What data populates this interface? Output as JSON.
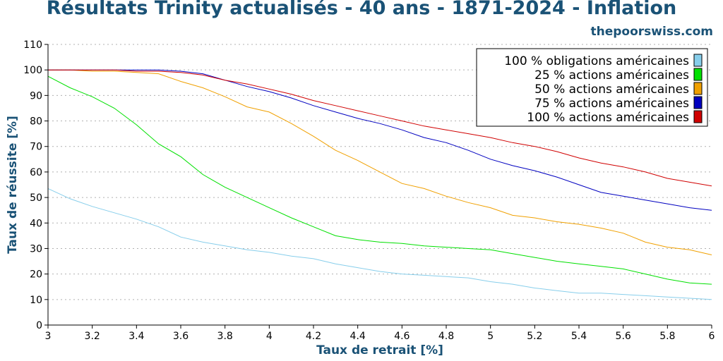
{
  "header": {
    "title": "Résultats Trinity actualisés - 40 ans - 1871-2024 - Inflation",
    "site": "thepoorswiss.com"
  },
  "chart_data": {
    "type": "line",
    "title": "Résultats Trinity actualisés - 40 ans - 1871-2024 - Inflation",
    "xlabel": "Taux de retrait [%]",
    "ylabel": "Taux de réussite [%]",
    "xlim": [
      3,
      6
    ],
    "ylim": [
      0,
      110
    ],
    "xticks": [
      "3",
      "3.2",
      "3.4",
      "3.6",
      "3.8",
      "4",
      "4.2",
      "4.4",
      "4.6",
      "4.8",
      "5",
      "5.2",
      "5.4",
      "5.6",
      "5.8",
      "6"
    ],
    "yticks": [
      "0",
      "10",
      "20",
      "30",
      "40",
      "50",
      "60",
      "70",
      "80",
      "90",
      "100",
      "110"
    ],
    "grid": "horizontal dotted",
    "legend_position": "top-right",
    "x": [
      3.0,
      3.1,
      3.2,
      3.3,
      3.4,
      3.5,
      3.6,
      3.7,
      3.8,
      3.9,
      4.0,
      4.1,
      4.2,
      4.3,
      4.4,
      4.5,
      4.6,
      4.7,
      4.8,
      4.9,
      5.0,
      5.1,
      5.2,
      5.3,
      5.4,
      5.5,
      5.6,
      5.7,
      5.8,
      5.9,
      6.0
    ],
    "series": [
      {
        "name": "100 % obligations américaines",
        "color": "#87ceeb",
        "values": [
          53.5,
          49.5,
          46.5,
          44,
          41.5,
          38.5,
          34.5,
          32.5,
          31,
          29.5,
          28.5,
          27,
          26,
          24,
          22.5,
          21,
          20,
          19.5,
          19,
          18.5,
          17,
          16,
          14.5,
          13.5,
          12.5,
          12.5,
          12,
          11.5,
          11,
          10.5,
          10
        ]
      },
      {
        "name": "25 % actions américaines",
        "color": "#00e000",
        "values": [
          97.5,
          93,
          89.5,
          85,
          78.5,
          71,
          66,
          59,
          54,
          50,
          46,
          42,
          38.5,
          35,
          33.5,
          32.5,
          32,
          31,
          30.5,
          30,
          29.5,
          28,
          26.5,
          25,
          24,
          23,
          22,
          20,
          18,
          16.5,
          16
        ]
      },
      {
        "name": "50 % actions américaines",
        "color": "#f0a000",
        "values": [
          100,
          100,
          99.5,
          99.5,
          99,
          98.5,
          95.5,
          93,
          89.5,
          85.5,
          83.5,
          79,
          74,
          68.5,
          64.5,
          60,
          55.5,
          53.5,
          50.5,
          48,
          46,
          43,
          42,
          40.5,
          39.5,
          38,
          36,
          32.5,
          30.5,
          29.5,
          27.5
        ]
      },
      {
        "name": "75 % actions américaines",
        "color": "#0000c0",
        "values": [
          100,
          100,
          100,
          100,
          100,
          100,
          99.5,
          98.5,
          96,
          93.5,
          91.5,
          89,
          86,
          83.5,
          81,
          79,
          76.5,
          73.5,
          71.5,
          68.5,
          65,
          62.5,
          60.5,
          58,
          55,
          52,
          50.5,
          49,
          47.5,
          46,
          45
        ]
      },
      {
        "name": "100 % actions américaines",
        "color": "#d00000",
        "values": [
          100,
          100,
          100,
          100,
          99.5,
          99.5,
          99,
          98,
          96,
          94.5,
          92.5,
          90.5,
          88,
          86,
          84,
          82,
          80,
          78,
          76.5,
          75,
          73.5,
          71.5,
          70,
          68,
          65.5,
          63.5,
          62,
          60,
          57.5,
          56,
          54.5
        ]
      }
    ]
  }
}
